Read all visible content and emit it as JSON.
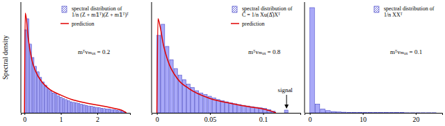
{
  "chart_data": [
    {
      "type": "histogram",
      "ylabel": "Spectral density",
      "xlim": [
        -0.1,
        2.9
      ],
      "xticks": [
        0,
        1,
        2
      ],
      "ylim": [
        0,
        1
      ],
      "tick_labels": "x",
      "legend": "upper right",
      "annotations": [
        {
          "text": "mᵀvₘₐₓ = 0.2"
        }
      ],
      "series": [
        {
          "name": "spectral distribution of\n1/n (Z + m𝟙ᵀ)(Z + m𝟙ᵀ)ᵀ",
          "type": "bar",
          "color": "#8c8cf5",
          "bins": [
            0,
            0.07,
            0.14,
            0.21,
            0.28,
            0.35,
            0.42,
            0.49,
            0.56,
            0.63,
            0.7,
            0.77,
            0.84,
            0.91,
            0.98,
            1.05,
            1.12,
            1.19,
            1.26,
            1.33,
            1.4,
            1.47,
            1.54,
            1.61,
            1.68,
            1.75,
            1.82,
            1.89,
            1.96,
            2.03,
            2.1,
            2.17,
            2.24,
            2.31,
            2.38,
            2.45,
            2.52,
            2.59,
            2.66,
            2.73,
            2.8
          ],
          "values": [
            0.75,
            0.85,
            0.62,
            0.5,
            0.42,
            0.37,
            0.32,
            0.28,
            0.25,
            0.22,
            0.2,
            0.18,
            0.17,
            0.155,
            0.14,
            0.13,
            0.12,
            0.11,
            0.1,
            0.095,
            0.09,
            0.085,
            0.078,
            0.072,
            0.067,
            0.062,
            0.058,
            0.054,
            0.05,
            0.046,
            0.042,
            0.039,
            0.036,
            0.033,
            0.03,
            0.027,
            0.024,
            0.02,
            0.016,
            0.01
          ]
        },
        {
          "name": "prediction",
          "type": "line",
          "color": "#e00000",
          "x": [
            0,
            0.02,
            0.05,
            0.1,
            0.2,
            0.3,
            0.5,
            0.7,
            1.0,
            1.3,
            1.6,
            2.0,
            2.4,
            2.7,
            2.8
          ],
          "values": [
            0,
            0.9,
            0.85,
            0.68,
            0.48,
            0.38,
            0.27,
            0.21,
            0.16,
            0.12,
            0.095,
            0.07,
            0.045,
            0.02,
            0
          ]
        }
      ]
    },
    {
      "type": "histogram",
      "xlim": [
        -0.005,
        0.135
      ],
      "xticks": [
        0,
        0.05,
        0.1
      ],
      "ylim": [
        0,
        1
      ],
      "tick_labels": "x",
      "legend": "upper right",
      "annotations": [
        {
          "text": "mᵀvₘₐₓ = 0.8"
        },
        {
          "text": "signal",
          "x": 0.122
        }
      ],
      "series": [
        {
          "name": "spectral distribution of\nĈ = 1/n Xu(Δ̂)Xᵀ",
          "type": "bar",
          "color": "#8c8cf5",
          "bins": [
            0,
            0.004,
            0.008,
            0.012,
            0.016,
            0.02,
            0.024,
            0.028,
            0.032,
            0.036,
            0.04,
            0.044,
            0.048,
            0.052,
            0.056,
            0.06,
            0.064,
            0.068,
            0.072,
            0.076,
            0.08,
            0.084,
            0.088,
            0.092,
            0.096,
            0.1,
            0.104,
            0.108,
            0.112,
            0.116,
            0.12,
            0.124
          ],
          "values": [
            0.7,
            0.8,
            0.6,
            0.48,
            0.4,
            0.34,
            0.3,
            0.26,
            0.23,
            0.2,
            0.18,
            0.165,
            0.15,
            0.135,
            0.12,
            0.11,
            0.1,
            0.09,
            0.082,
            0.075,
            0.068,
            0.062,
            0.056,
            0.05,
            0.045,
            0.04,
            0.03,
            0.015,
            0,
            0,
            0.025
          ]
        },
        {
          "name": "prediction",
          "type": "line",
          "color": "#e00000",
          "x": [
            0,
            0.001,
            0.003,
            0.006,
            0.01,
            0.02,
            0.03,
            0.05,
            0.07,
            0.09,
            0.1,
            0.108,
            0.112
          ],
          "values": [
            0,
            0.85,
            0.78,
            0.62,
            0.48,
            0.3,
            0.22,
            0.13,
            0.085,
            0.05,
            0.035,
            0.015,
            0
          ]
        }
      ]
    },
    {
      "type": "histogram",
      "xlim": [
        -1,
        25
      ],
      "xticks": [
        0,
        10,
        20
      ],
      "ylim": [
        0,
        1
      ],
      "tick_labels": "x",
      "legend": "upper right",
      "annotations": [
        {
          "text": "mᵀvₘₐₓ = 0.1"
        }
      ],
      "series": [
        {
          "name": "spectral distribution of\n1/n XXᵀ",
          "type": "bar",
          "color": "#8c8cf5",
          "bins": [
            0,
            1,
            2,
            3,
            4,
            5,
            6,
            7,
            8,
            9,
            10,
            11,
            12,
            13,
            14,
            15,
            16,
            17,
            18,
            19,
            20,
            21,
            22,
            23,
            24
          ],
          "values": [
            0.95,
            0.08,
            0.035,
            0.02,
            0.012,
            0.008,
            0.006,
            0.005,
            0.004,
            0.004,
            0.003,
            0.003,
            0.003,
            0.002,
            0.002,
            0.002,
            0.002,
            0.002,
            0.001,
            0.001,
            0.001,
            0.001,
            0.001,
            0.001
          ]
        }
      ]
    }
  ]
}
